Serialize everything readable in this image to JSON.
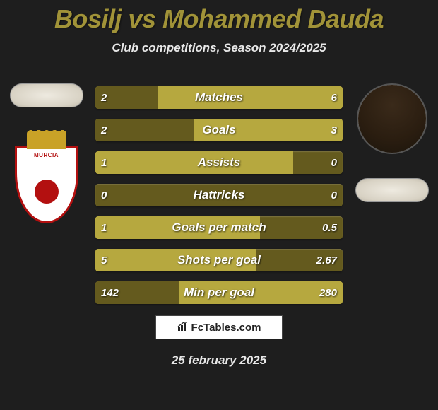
{
  "title": "Bosilj vs Mohammed Dauda",
  "subtitle": "Club competitions, Season 2024/2025",
  "date": "25 february 2025",
  "logo_text": "FcTables.com",
  "badge_text": "MURCIA",
  "colors": {
    "accent_title": "#a19338",
    "bar_dark": "#645a1e",
    "bar_light": "#b6a83f",
    "background": "#1e1e1e",
    "text_light": "#e8e8e8",
    "badge_border": "#b31010",
    "crown": "#c9a227"
  },
  "bars": [
    {
      "label": "Matches",
      "left": "2",
      "right": "6",
      "left_pct": 25,
      "right_pct": 75,
      "left_dominant": false
    },
    {
      "label": "Goals",
      "left": "2",
      "right": "3",
      "left_pct": 40,
      "right_pct": 60,
      "left_dominant": false
    },
    {
      "label": "Assists",
      "left": "1",
      "right": "0",
      "left_pct": 80,
      "right_pct": 0,
      "left_dominant": true
    },
    {
      "label": "Hattricks",
      "left": "0",
      "right": "0",
      "left_pct": 0,
      "right_pct": 0,
      "left_dominant": false
    },
    {
      "label": "Goals per match",
      "left": "1",
      "right": "0.5",
      "left_pct": 66.7,
      "right_pct": 33.3,
      "left_dominant": true
    },
    {
      "label": "Shots per goal",
      "left": "5",
      "right": "2.67",
      "left_pct": 65.2,
      "right_pct": 34.8,
      "left_dominant": true
    },
    {
      "label": "Min per goal",
      "left": "142",
      "right": "280",
      "left_pct": 33.6,
      "right_pct": 66.4,
      "left_dominant": false
    }
  ]
}
